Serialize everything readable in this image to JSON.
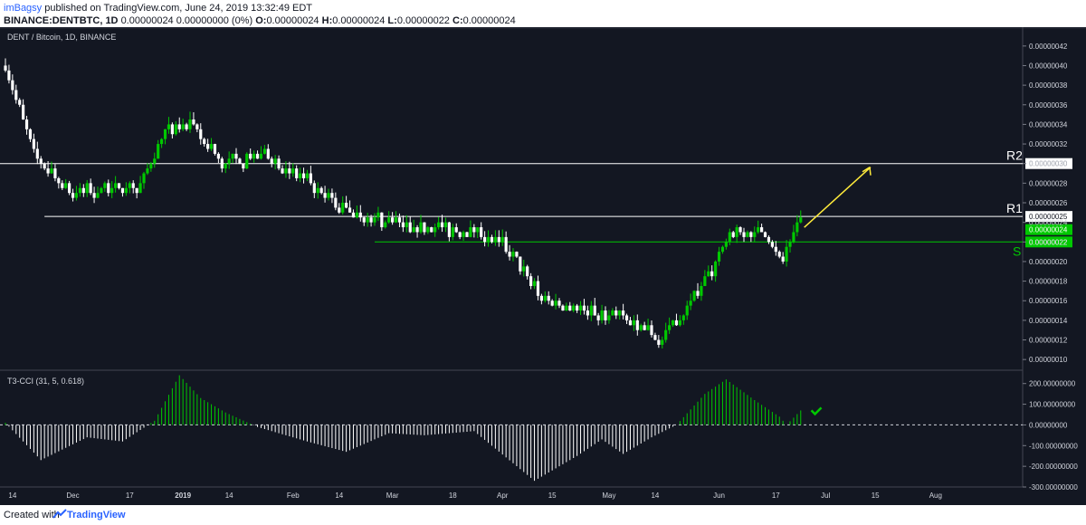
{
  "header": {
    "user": "imBagsy",
    "published": "published on TradingView.com, June 24, 2019 13:32:49 EDT",
    "symbol": "BINANCE:DENTBTC, 1D",
    "values": "0.00000024 0.00000000 (0%)",
    "o_label": "O:",
    "o_value": "0.00000024",
    "h_label": "H:",
    "h_value": "0.00000024",
    "l_label": "L:",
    "l_value": "0.00000022",
    "c_label": "C:",
    "c_value": "0.00000024"
  },
  "footer": {
    "created": "Created with",
    "brand": "TradingView"
  },
  "colors": {
    "background": "#131722",
    "up": "#00c800",
    "down": "#ffffff",
    "line": "#ffffff",
    "support": "#00c800",
    "arrow": "#ffeb3b",
    "price_label_green": "#00c800",
    "price_label_white": "#ffffff"
  },
  "chart_data": [
    {
      "type": "candlestick",
      "title": "DENT / Bitcoin, 1D, BINANCE",
      "y_ticks": [
        "0.00000042",
        "0.00000040",
        "0.00000038",
        "0.00000036",
        "0.00000034",
        "0.00000032",
        "0.00000030",
        "0.00000028",
        "0.00000026",
        "0.00000024",
        "0.00000022",
        "0.00000020",
        "0.00000018",
        "0.00000016",
        "0.00000014",
        "0.00000012",
        "0.00000010"
      ],
      "ylim": [
        9e-08,
        4.3e-07
      ],
      "x_ticks": [
        "14",
        "Dec",
        "17",
        "2019",
        "14",
        "Feb",
        "14",
        "Mar",
        "18",
        "Apr",
        "15",
        "May",
        "14",
        "Jun",
        "17",
        "Jul",
        "15",
        "Aug"
      ],
      "x_ticks_bold": [
        "2019"
      ],
      "levels": [
        {
          "label": "R2",
          "value": 3e-07,
          "price_label": "0.00000030",
          "style": "white"
        },
        {
          "label": "R1",
          "value": 2.46e-07,
          "price_label": "0.00000025",
          "style": "white"
        },
        {
          "label": "S",
          "value": 2.2e-07,
          "price_label": "0.00000022",
          "style": "green"
        }
      ],
      "current_price_label": "0.00000024",
      "annotation": "yellow arrow pointing up from R1 toward R2",
      "price_anchors": [
        {
          "date": "2018-11-12",
          "price": 4e-07
        },
        {
          "date": "2018-11-20",
          "price": 3.1e-07
        },
        {
          "date": "2018-11-30",
          "price": 2.7e-07
        },
        {
          "date": "2018-12-20",
          "price": 2.8e-07
        },
        {
          "date": "2018-12-27",
          "price": 3.3e-07
        },
        {
          "date": "2019-01-03",
          "price": 3.4e-07
        },
        {
          "date": "2019-01-12",
          "price": 3e-07
        },
        {
          "date": "2019-01-25",
          "price": 3.1e-07
        },
        {
          "date": "2019-02-01",
          "price": 2.9e-07
        },
        {
          "date": "2019-02-12",
          "price": 2.6e-07
        },
        {
          "date": "2019-02-25",
          "price": 2.4e-07
        },
        {
          "date": "2019-03-20",
          "price": 2.3e-07
        },
        {
          "date": "2019-03-28",
          "price": 2.3e-07
        },
        {
          "date": "2019-04-05",
          "price": 2e-07
        },
        {
          "date": "2019-04-12",
          "price": 1.6e-07
        },
        {
          "date": "2019-04-25",
          "price": 1.5e-07
        },
        {
          "date": "2019-05-05",
          "price": 1.4e-07
        },
        {
          "date": "2019-05-16",
          "price": 1.2e-07
        },
        {
          "date": "2019-05-22",
          "price": 1.5e-07
        },
        {
          "date": "2019-05-31",
          "price": 2e-07
        },
        {
          "date": "2019-06-05",
          "price": 2.3e-07
        },
        {
          "date": "2019-06-14",
          "price": 2.3e-07
        },
        {
          "date": "2019-06-18",
          "price": 2e-07
        },
        {
          "date": "2019-06-24",
          "price": 2.4e-07
        }
      ]
    },
    {
      "type": "bar",
      "title": "T3-CCI (31, 5, 0.618)",
      "y_ticks": [
        "200.00000000",
        "100.00000000",
        "0.00000000",
        "-100.00000000",
        "-200.00000000",
        "-300.00000000"
      ],
      "ylim": [
        -300,
        260
      ],
      "zero_line": "dashed",
      "positive_color": "#00c800",
      "negative_color": "#ffffff",
      "anchors": [
        {
          "date": "2018-11-12",
          "value": 10
        },
        {
          "date": "2018-11-22",
          "value": -170
        },
        {
          "date": "2018-12-05",
          "value": -60
        },
        {
          "date": "2018-12-15",
          "value": -80
        },
        {
          "date": "2018-12-24",
          "value": 20
        },
        {
          "date": "2018-12-31",
          "value": 240
        },
        {
          "date": "2019-01-06",
          "value": 130
        },
        {
          "date": "2019-01-13",
          "value": 60
        },
        {
          "date": "2019-01-22",
          "value": -10
        },
        {
          "date": "2019-02-05",
          "value": -80
        },
        {
          "date": "2019-02-16",
          "value": -130
        },
        {
          "date": "2019-02-28",
          "value": -40
        },
        {
          "date": "2019-03-10",
          "value": -50
        },
        {
          "date": "2019-03-24",
          "value": -30
        },
        {
          "date": "2019-04-10",
          "value": -270
        },
        {
          "date": "2019-04-22",
          "value": -150
        },
        {
          "date": "2019-04-29",
          "value": -70
        },
        {
          "date": "2019-05-05",
          "value": -140
        },
        {
          "date": "2019-05-13",
          "value": -60
        },
        {
          "date": "2019-05-20",
          "value": 0
        },
        {
          "date": "2019-05-28",
          "value": 150
        },
        {
          "date": "2019-06-03",
          "value": 220
        },
        {
          "date": "2019-06-11",
          "value": 120
        },
        {
          "date": "2019-06-18",
          "value": 40
        },
        {
          "date": "2019-06-20",
          "value": 0
        },
        {
          "date": "2019-06-24",
          "value": 70
        }
      ],
      "annotation": "green checkmark"
    }
  ]
}
